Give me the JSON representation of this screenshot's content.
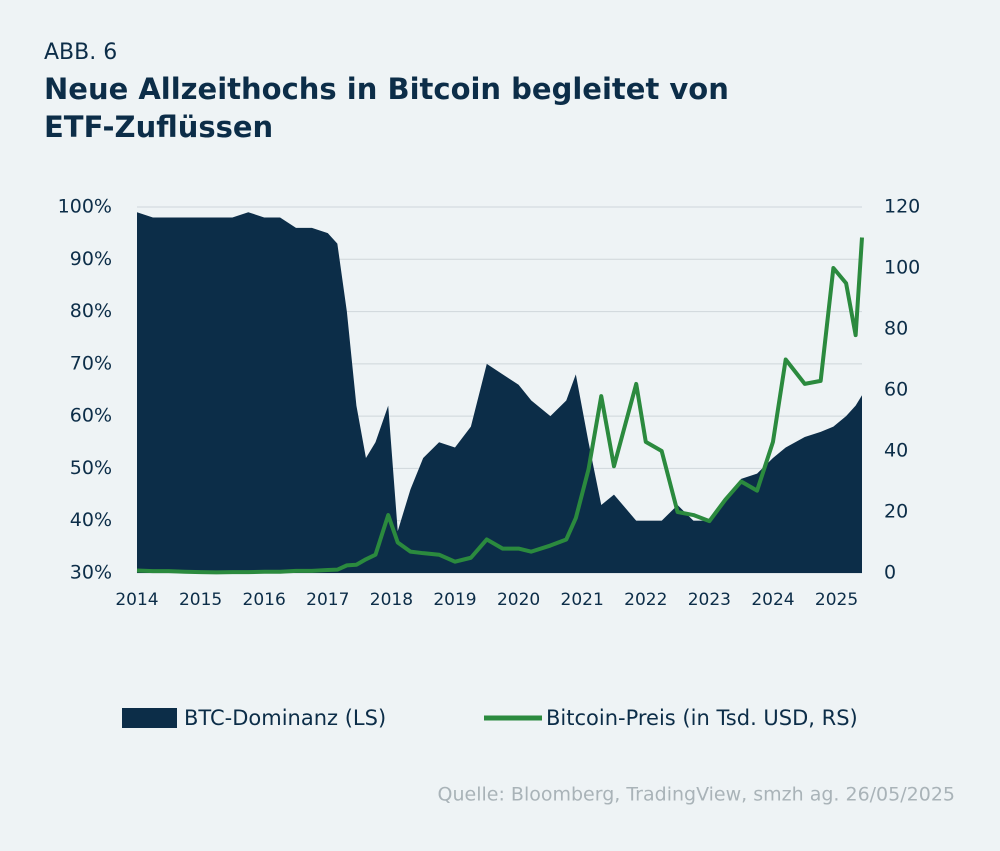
{
  "chart_data": {
    "type": "combo",
    "label": "ABB. 6",
    "title": "Neue Allzeithochs in Bitcoin begleitet von ETF-Zuflüssen",
    "source": "Quelle: Bloomberg, TradingView, smzh ag. 26/05/2025",
    "x": [
      2014,
      2014.25,
      2014.5,
      2014.75,
      2015,
      2015.25,
      2015.5,
      2015.75,
      2016,
      2016.25,
      2016.5,
      2016.75,
      2017,
      2017.15,
      2017.3,
      2017.45,
      2017.6,
      2017.75,
      2017.95,
      2018.1,
      2018.3,
      2018.5,
      2018.75,
      2019,
      2019.25,
      2019.5,
      2019.75,
      2020,
      2020.2,
      2020.5,
      2020.75,
      2020.9,
      2021.1,
      2021.3,
      2021.5,
      2021.85,
      2022,
      2022.25,
      2022.5,
      2022.75,
      2023,
      2023.25,
      2023.5,
      2023.75,
      2024,
      2024.2,
      2024.5,
      2024.75,
      2024.95,
      2025.15,
      2025.3,
      2025.4
    ],
    "series": [
      {
        "name": "BTC-Dominanz (LS)",
        "type": "area",
        "color": "#0c2d48",
        "values": [
          99,
          98,
          98,
          98,
          98,
          98,
          98,
          99,
          98,
          98,
          96,
          96,
          95,
          93,
          80,
          62,
          52,
          55,
          62,
          38,
          46,
          52,
          55,
          54,
          58,
          70,
          68,
          66,
          63,
          60,
          63,
          68,
          55,
          43,
          45,
          40,
          40,
          40,
          43,
          40,
          40,
          44,
          48,
          49,
          52,
          54,
          56,
          57,
          58,
          60,
          62,
          64
        ]
      },
      {
        "name": "Bitcoin-Preis (in Tsd. USD, RS)",
        "type": "line",
        "axis": "y2",
        "color": "#2b8a3e",
        "values": [
          0.8,
          0.6,
          0.6,
          0.4,
          0.3,
          0.2,
          0.3,
          0.3,
          0.4,
          0.4,
          0.7,
          0.7,
          1,
          1.1,
          2.5,
          2.7,
          4.5,
          6,
          19,
          10,
          7,
          6.5,
          6,
          3.7,
          5,
          11,
          8,
          8,
          7,
          9,
          11,
          18,
          34,
          58,
          35,
          62,
          43,
          40,
          20,
          19,
          17,
          24,
          30,
          27,
          43,
          70,
          62,
          63,
          100,
          95,
          78,
          110
        ]
      }
    ],
    "xlim": [
      2014,
      2025.4
    ],
    "xticks": [
      2014,
      2015,
      2016,
      2017,
      2018,
      2019,
      2020,
      2021,
      2022,
      2023,
      2024,
      2025
    ],
    "ylim": [
      30,
      100
    ],
    "yticks": [
      {
        "value": 30,
        "label": "30%"
      },
      {
        "value": 40,
        "label": "40%"
      },
      {
        "value": 50,
        "label": "50%"
      },
      {
        "value": 60,
        "label": "60%"
      },
      {
        "value": 70,
        "label": "70%"
      },
      {
        "value": 80,
        "label": "80%"
      },
      {
        "value": 90,
        "label": "90%"
      },
      {
        "value": 100,
        "label": "100%"
      }
    ],
    "y2lim": [
      0,
      120
    ],
    "y2ticks": [
      0,
      20,
      40,
      60,
      80,
      100,
      120
    ],
    "grid": true
  }
}
